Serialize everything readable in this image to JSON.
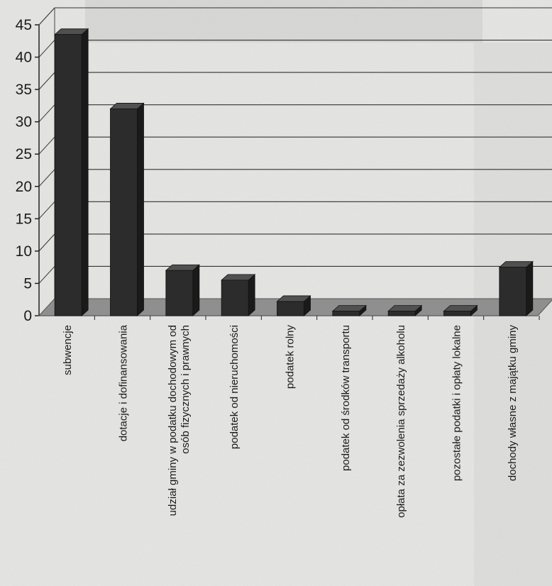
{
  "chart_data": {
    "type": "bar",
    "title": "",
    "xlabel": "",
    "ylabel": "",
    "ylim": [
      0,
      45
    ],
    "yticks": [
      0,
      5,
      10,
      15,
      20,
      25,
      30,
      35,
      40,
      45
    ],
    "grid": true,
    "legend": "none",
    "bar_color": "#2c2c2c",
    "floor_color": "#8f8f8f",
    "categories": [
      [
        "subwencje"
      ],
      [
        "dotacje i dofinansowania"
      ],
      [
        "udział gminy w podatku dochodowym od",
        "osób fizycznych i prawnych"
      ],
      [
        "podatek od nieruchomości"
      ],
      [
        "podatek rolny"
      ],
      [
        "podatek od środków transportu"
      ],
      [
        "opłata za zezwolenia sprzedaży alkoholu"
      ],
      [
        "pozostałe podatki i opłaty lokalne"
      ],
      [
        "dochody własne z majątku gminy"
      ]
    ],
    "values": [
      43.5,
      32,
      7,
      5.5,
      2.2,
      0.7,
      0.7,
      0.7,
      7.5
    ]
  }
}
